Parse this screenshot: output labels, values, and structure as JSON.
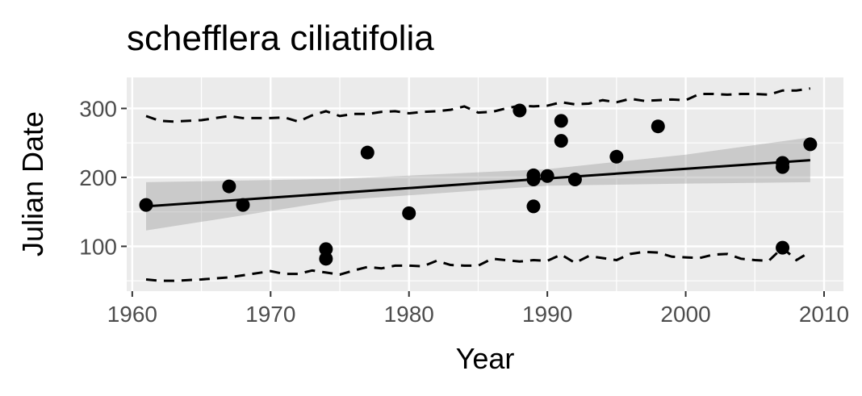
{
  "chart_data": {
    "type": "scatter",
    "title": "schefflera ciliatifolia",
    "xlabel": "Year",
    "ylabel": "Julian Date",
    "xlim": [
      1959.6,
      2011.4
    ],
    "ylim": [
      35,
      345
    ],
    "x_ticks": [
      1960,
      1970,
      1980,
      1990,
      2000,
      2010
    ],
    "y_ticks": [
      100,
      200,
      300
    ],
    "grid": true,
    "legend": "none",
    "colors": {
      "panel": "#ebebeb",
      "grid": "#ffffff",
      "points": "#000000",
      "trend": "#000000",
      "ribbon": "#999999",
      "tick_text": "#4d4d4d",
      "tick_mark": "#333333"
    },
    "points": [
      {
        "x": 1961,
        "y": 160
      },
      {
        "x": 1967,
        "y": 187
      },
      {
        "x": 1968,
        "y": 160
      },
      {
        "x": 1974,
        "y": 96
      },
      {
        "x": 1974,
        "y": 82
      },
      {
        "x": 1977,
        "y": 236
      },
      {
        "x": 1980,
        "y": 148
      },
      {
        "x": 1988,
        "y": 297
      },
      {
        "x": 1989,
        "y": 203
      },
      {
        "x": 1989,
        "y": 197
      },
      {
        "x": 1989,
        "y": 158
      },
      {
        "x": 1990,
        "y": 202
      },
      {
        "x": 1991,
        "y": 282
      },
      {
        "x": 1991,
        "y": 253
      },
      {
        "x": 1992,
        "y": 197
      },
      {
        "x": 1995,
        "y": 230
      },
      {
        "x": 1998,
        "y": 274
      },
      {
        "x": 2007,
        "y": 221
      },
      {
        "x": 2007,
        "y": 215
      },
      {
        "x": 2007,
        "y": 98
      },
      {
        "x": 2009,
        "y": 248
      }
    ],
    "trend": {
      "x": [
        1961,
        2009
      ],
      "y": [
        158,
        225
      ]
    },
    "confidence_band": {
      "x": [
        1961,
        1975,
        1990,
        2000,
        2009
      ],
      "lower": [
        123,
        167,
        188,
        191,
        193
      ],
      "upper": [
        193,
        198,
        212,
        233,
        258
      ]
    },
    "upper_quantile": {
      "x": [
        1961,
        1962,
        1963,
        1965,
        1967,
        1968,
        1970,
        1971,
        1972,
        1973,
        1974,
        1975,
        1976,
        1977,
        1978,
        1979,
        1980,
        1981,
        1982,
        1983,
        1984,
        1985,
        1986,
        1987,
        1988,
        1989,
        1990,
        1991,
        1992,
        1993,
        1994,
        1995,
        1996,
        1997,
        1998,
        1999,
        2000,
        2001,
        2002,
        2003,
        2004,
        2005,
        2006,
        2007,
        2008,
        2009
      ],
      "y": [
        289,
        282,
        281,
        283,
        289,
        286,
        286,
        287,
        281,
        290,
        296,
        289,
        292,
        292,
        295,
        296,
        293,
        295,
        296,
        298,
        303,
        294,
        295,
        300,
        304,
        303,
        304,
        309,
        306,
        307,
        312,
        309,
        314,
        311,
        312,
        313,
        312,
        321,
        321,
        320,
        321,
        321,
        320,
        326,
        326,
        329
      ]
    },
    "lower_quantile": {
      "x": [
        1961,
        1962,
        1963,
        1965,
        1967,
        1968,
        1970,
        1971,
        1972,
        1973,
        1974,
        1975,
        1976,
        1977,
        1978,
        1979,
        1980,
        1981,
        1982,
        1983,
        1984,
        1985,
        1986,
        1987,
        1988,
        1989,
        1990,
        1991,
        1992,
        1993,
        1994,
        1995,
        1996,
        1997,
        1998,
        1999,
        2000,
        2001,
        2002,
        2003,
        2004,
        2005,
        2006,
        2007,
        2008,
        2009
      ],
      "y": [
        52,
        50,
        50,
        52,
        55,
        58,
        64,
        60,
        60,
        65,
        62,
        59,
        65,
        70,
        68,
        72,
        72,
        71,
        79,
        73,
        72,
        72,
        82,
        80,
        78,
        80,
        79,
        88,
        76,
        86,
        83,
        80,
        89,
        92,
        91,
        85,
        84,
        83,
        88,
        89,
        82,
        80,
        79,
        98,
        80,
        92
      ]
    }
  }
}
